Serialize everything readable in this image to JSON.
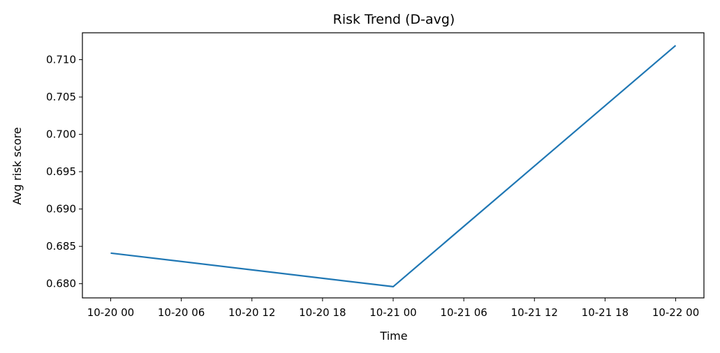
{
  "chart_data": {
    "type": "line",
    "title": "Risk Trend (D-avg)",
    "xlabel": "Time",
    "ylabel": "Avg risk score",
    "x_tick_labels": [
      "10-20 00",
      "10-20 06",
      "10-20 12",
      "10-20 18",
      "10-21 00",
      "10-21 06",
      "10-21 12",
      "10-21 18",
      "10-22 00"
    ],
    "x_tick_hours": [
      0,
      6,
      12,
      18,
      24,
      30,
      36,
      42,
      48
    ],
    "y_ticks": [
      0.68,
      0.685,
      0.69,
      0.695,
      0.7,
      0.705,
      0.71
    ],
    "y_tick_labels": [
      "0.680",
      "0.685",
      "0.690",
      "0.695",
      "0.700",
      "0.705",
      "0.710"
    ],
    "xlim_hours": [
      -2.4,
      50.4
    ],
    "ylim": [
      0.6781,
      0.7136
    ],
    "grid": false,
    "series": [
      {
        "color": "#1f77b4",
        "x": [
          "10-20 00",
          "10-21 00",
          "10-22 00"
        ],
        "x_hours": [
          0,
          24,
          48
        ],
        "values": [
          0.6841,
          0.6796,
          0.7119
        ]
      }
    ]
  }
}
